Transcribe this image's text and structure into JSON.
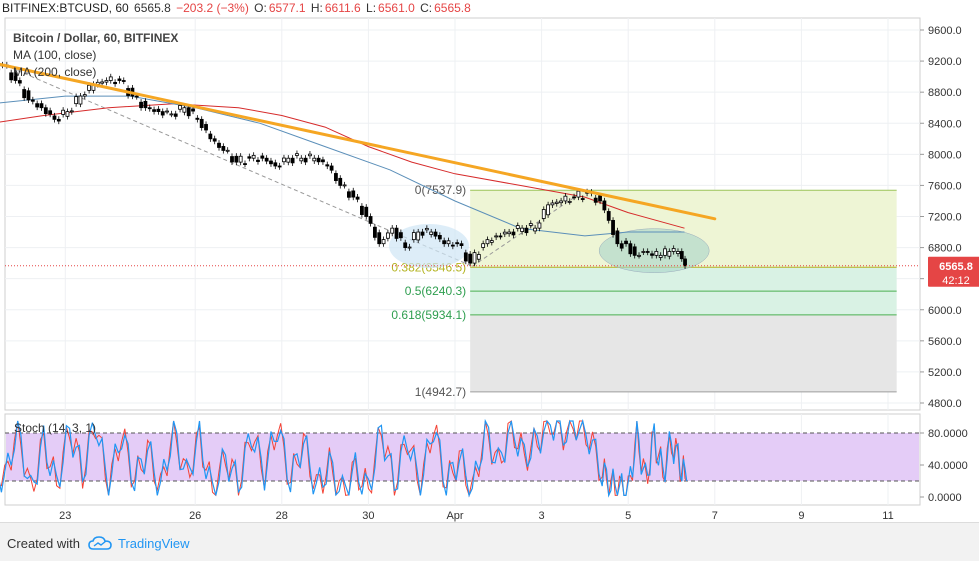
{
  "header": {
    "symbol": "BITFINEX:BTCUSD, 60",
    "last": "6565.8",
    "change": "−203.2 (−3%)",
    "open_label": "O:",
    "open": "6577.1",
    "high_label": "H:",
    "high": "6611.6",
    "low_label": "L:",
    "low": "6561.0",
    "close_label": "C:",
    "close": "6565.8"
  },
  "legend": {
    "title": "Bitcoin / Dollar, 60, BITFINEX",
    "ma100": "MA (100, close)",
    "ma200": "MA (200, close)",
    "stoch": "Stoch (14, 3, 1)"
  },
  "price_badge": {
    "price": "6565.8",
    "countdown": "42:12"
  },
  "footer": {
    "created": "Created with",
    "brand": "TradingView"
  },
  "colors": {
    "candle": "#000000",
    "ma100": "#5b8fb9",
    "ma200": "#d62b2b",
    "trendline": "#f5a623",
    "fib_upper": "#eef5d5",
    "fib_mid": "#d9f2e4",
    "fib_lower": "#e6e6e6",
    "stoch_band": "#e4ccf7",
    "stoch_k": "#2196f3",
    "stoch_d": "#f44336",
    "badge": "#e54545"
  },
  "chart_data": {
    "type": "candlestick",
    "title": "Bitcoin / Dollar, 60, BITFINEX",
    "ylim": [
      4600,
      9850
    ],
    "y_ticks": [
      "9600.0",
      "9200.0",
      "8800.0",
      "8400.0",
      "8000.0",
      "7600.0",
      "7200.0",
      "6800.0",
      "6400.0",
      "6000.0",
      "5600.0",
      "5200.0",
      "4800.0"
    ],
    "x_ticks": [
      "23",
      "26",
      "28",
      "30",
      "Apr",
      "3",
      "5",
      "7",
      "9",
      "11"
    ],
    "x_tick_days": [
      -9,
      -6,
      -4,
      -2,
      0,
      2,
      4,
      6,
      8,
      10
    ],
    "close_series": [
      [
        -10.7,
        9100
      ],
      [
        -10.4,
        9150
      ],
      [
        -10.1,
        8950
      ],
      [
        -9.8,
        8700
      ],
      [
        -9.5,
        8600
      ],
      [
        -9.2,
        8450
      ],
      [
        -8.9,
        8550
      ],
      [
        -8.6,
        8750
      ],
      [
        -8.3,
        8900
      ],
      [
        -8.0,
        8950
      ],
      [
        -7.7,
        8950
      ],
      [
        -7.4,
        8750
      ],
      [
        -7.1,
        8600
      ],
      [
        -6.8,
        8550
      ],
      [
        -6.5,
        8520
      ],
      [
        -6.2,
        8600
      ],
      [
        -5.9,
        8450
      ],
      [
        -5.6,
        8200
      ],
      [
        -5.3,
        8050
      ],
      [
        -5.0,
        7900
      ],
      [
        -4.7,
        7950
      ],
      [
        -4.4,
        7950
      ],
      [
        -4.1,
        7850
      ],
      [
        -3.8,
        7950
      ],
      [
        -3.5,
        7950
      ],
      [
        -3.2,
        7950
      ],
      [
        -2.9,
        7850
      ],
      [
        -2.6,
        7600
      ],
      [
        -2.3,
        7450
      ],
      [
        -2.0,
        7200
      ],
      [
        -1.7,
        6850
      ],
      [
        -1.4,
        7050
      ],
      [
        -1.1,
        6800
      ],
      [
        -0.8,
        7000
      ],
      [
        -0.5,
        7000
      ],
      [
        -0.2,
        6850
      ],
      [
        0.1,
        6850
      ],
      [
        0.4,
        6600
      ],
      [
        0.7,
        6850
      ],
      [
        1.0,
        6950
      ],
      [
        1.3,
        7000
      ],
      [
        1.6,
        7050
      ],
      [
        1.9,
        7050
      ],
      [
        2.2,
        7350
      ],
      [
        2.5,
        7400
      ],
      [
        2.8,
        7450
      ],
      [
        3.1,
        7500
      ],
      [
        3.4,
        7400
      ],
      [
        3.6,
        7150
      ],
      [
        3.8,
        6850
      ],
      [
        4.0,
        6850
      ],
      [
        4.2,
        6700
      ],
      [
        4.4,
        6750
      ],
      [
        4.6,
        6700
      ],
      [
        4.8,
        6700
      ],
      [
        5.0,
        6750
      ],
      [
        5.2,
        6750
      ],
      [
        5.35,
        6565.8
      ]
    ],
    "ma100": [
      [
        -10.7,
        8650
      ],
      [
        -9.0,
        8750
      ],
      [
        -7.5,
        8750
      ],
      [
        -6.0,
        8600
      ],
      [
        -4.5,
        8400
      ],
      [
        -3.0,
        8100
      ],
      [
        -1.5,
        7800
      ],
      [
        0.0,
        7400
      ],
      [
        1.5,
        7050
      ],
      [
        3.0,
        6950
      ],
      [
        4.0,
        7000
      ],
      [
        5.3,
        7000
      ]
    ],
    "ma200": [
      [
        -10.7,
        8400
      ],
      [
        -9.5,
        8500
      ],
      [
        -8.0,
        8600
      ],
      [
        -6.5,
        8650
      ],
      [
        -5.0,
        8600
      ],
      [
        -4.0,
        8500
      ],
      [
        -3.0,
        8350
      ],
      [
        -2.0,
        8100
      ],
      [
        -1.0,
        7900
      ],
      [
        0.0,
        7750
      ],
      [
        1.5,
        7600
      ],
      [
        3.0,
        7450
      ],
      [
        4.0,
        7250
      ],
      [
        5.3,
        7050
      ]
    ],
    "trendline": [
      [
        -10.7,
        9180
      ],
      [
        6.0,
        7170
      ]
    ],
    "fib": {
      "x_start": 0.35,
      "x_end": 10.2,
      "levels": [
        {
          "ratio": "0",
          "price": 7537.9,
          "label": "0(7537.9)"
        },
        {
          "ratio": "0.382",
          "price": 6546.5,
          "label": "0.382(6546.5)"
        },
        {
          "ratio": "0.5",
          "price": 6240.3,
          "label": "0.5(6240.3)"
        },
        {
          "ratio": "0.618",
          "price": 5934.1,
          "label": "0.618(5934.1)"
        },
        {
          "ratio": "1",
          "price": 4942.7,
          "label": "1(4942.7)"
        }
      ]
    },
    "stochastic": {
      "ylim": [
        -10,
        100
      ],
      "y_ticks": [
        "80.0000",
        "40.0000",
        "0.0000"
      ],
      "band": [
        20,
        80
      ],
      "k_series": [
        [
          -10.7,
          45
        ],
        [
          -10.4,
          20
        ],
        [
          -10.1,
          90
        ],
        [
          -9.8,
          5
        ],
        [
          -9.5,
          70
        ],
        [
          -9.2,
          15
        ],
        [
          -8.9,
          85
        ],
        [
          -8.6,
          30
        ],
        [
          -8.3,
          95
        ],
        [
          -8.0,
          10
        ],
        [
          -7.7,
          80
        ],
        [
          -7.4,
          20
        ],
        [
          -7.1,
          60
        ],
        [
          -6.8,
          10
        ],
        [
          -6.5,
          85
        ],
        [
          -6.2,
          25
        ],
        [
          -5.9,
          75
        ],
        [
          -5.6,
          5
        ],
        [
          -5.3,
          50
        ],
        [
          -5.0,
          15
        ],
        [
          -4.7,
          80
        ],
        [
          -4.4,
          30
        ],
        [
          -4.1,
          90
        ],
        [
          -3.8,
          20
        ],
        [
          -3.5,
          70
        ],
        [
          -3.2,
          10
        ],
        [
          -2.9,
          40
        ],
        [
          -2.6,
          5
        ],
        [
          -2.3,
          35
        ],
        [
          -2.0,
          8
        ],
        [
          -1.7,
          85
        ],
        [
          -1.4,
          15
        ],
        [
          -1.1,
          75
        ],
        [
          -0.8,
          10
        ],
        [
          -0.5,
          90
        ],
        [
          -0.2,
          15
        ],
        [
          0.1,
          50
        ],
        [
          0.4,
          5
        ],
        [
          0.7,
          85
        ],
        [
          1.0,
          40
        ],
        [
          1.3,
          90
        ],
        [
          1.6,
          50
        ],
        [
          1.9,
          70
        ],
        [
          2.2,
          95
        ],
        [
          2.5,
          80
        ],
        [
          2.8,
          92
        ],
        [
          3.1,
          75
        ],
        [
          3.4,
          30
        ],
        [
          3.6,
          15
        ],
        [
          3.8,
          10
        ],
        [
          4.0,
          5
        ],
        [
          4.2,
          80
        ],
        [
          4.4,
          20
        ],
        [
          4.6,
          75
        ],
        [
          4.8,
          30
        ],
        [
          5.0,
          70
        ],
        [
          5.2,
          40
        ],
        [
          5.35,
          20
        ]
      ]
    }
  }
}
